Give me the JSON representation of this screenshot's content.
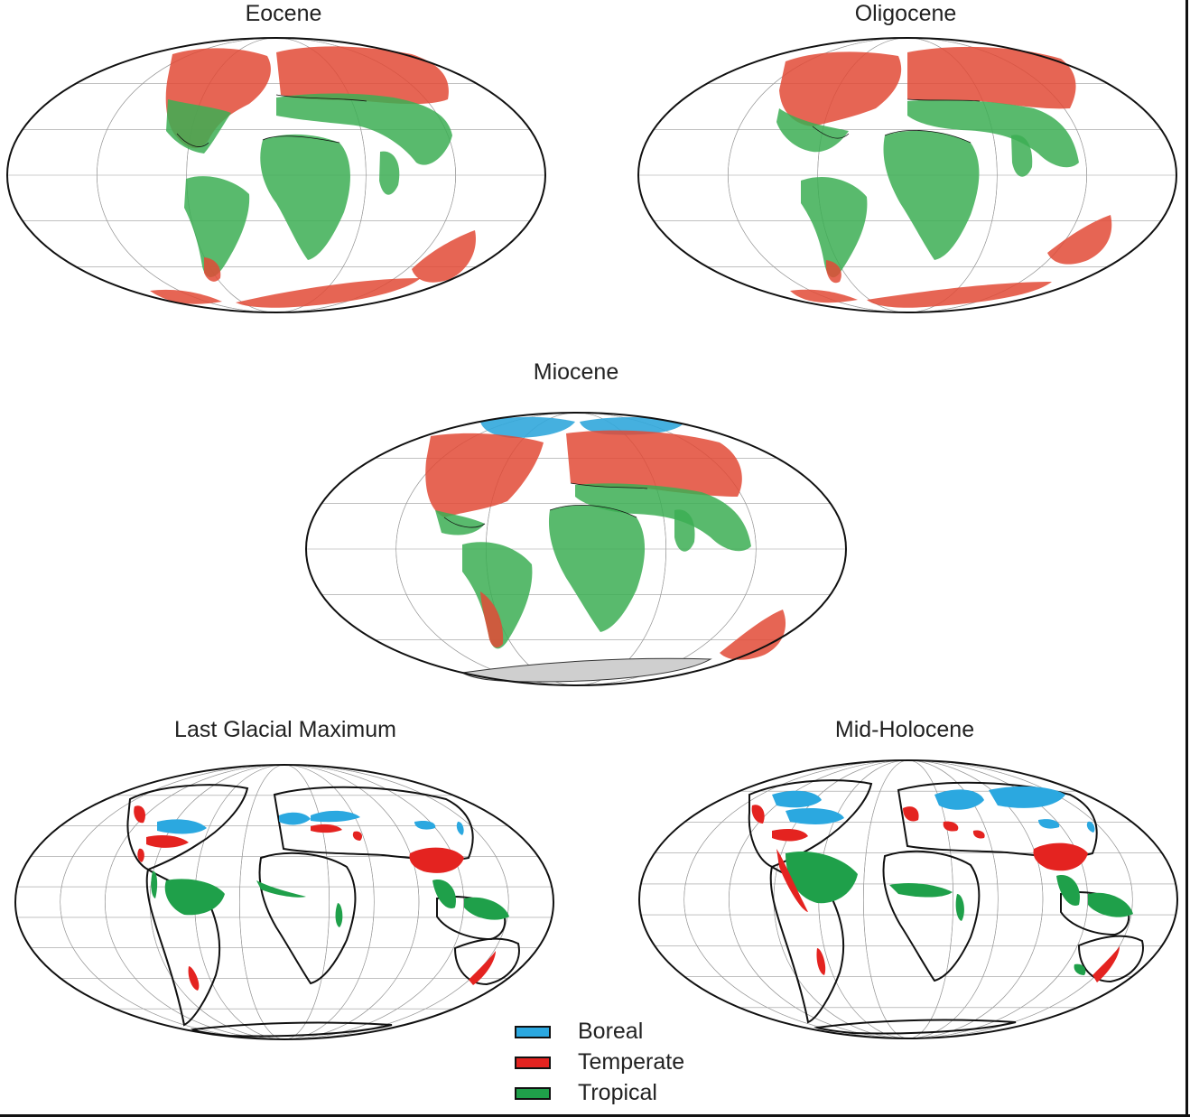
{
  "panels": [
    {
      "id": "eocene",
      "title": "Eocene"
    },
    {
      "id": "oligocene",
      "title": "Oligocene"
    },
    {
      "id": "miocene",
      "title": "Miocene"
    },
    {
      "id": "lgm",
      "title": "Last Glacial Maximum"
    },
    {
      "id": "holocene",
      "title": "Mid-Holocene"
    }
  ],
  "legend": [
    {
      "label": "Boreal",
      "color": "#2ba8e0"
    },
    {
      "label": "Temperate",
      "color": "#e42320"
    },
    {
      "label": "Tropical",
      "color": "#1fa04a"
    }
  ],
  "colors": {
    "paleo_temperate": "#e24a36",
    "paleo_tropical": "#3cae54",
    "paleo_boreal": "#31a7dc",
    "coast": "#111111",
    "grid": "#9a9a9a"
  }
}
